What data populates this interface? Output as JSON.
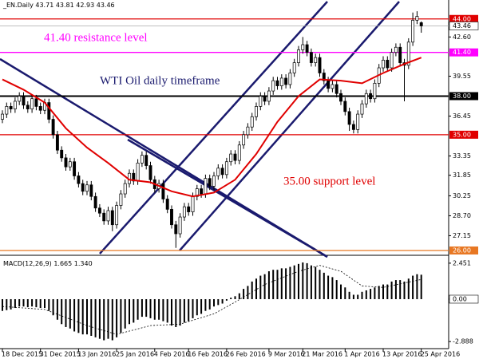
{
  "chart_data": {
    "type": "candlestick",
    "header_symbol": "_EN.Daily",
    "up_color": "#ffffff",
    "down_color": "#000000",
    "categories": [
      "18 Dec 2015",
      null,
      null,
      null,
      null,
      null,
      null,
      null,
      null,
      "31 Dec 2015",
      null,
      null,
      null,
      null,
      null,
      null,
      null,
      null,
      "13 Jan 2016",
      null,
      null,
      null,
      null,
      null,
      null,
      null,
      null,
      "25 Jan 2016",
      null,
      null,
      null,
      null,
      null,
      null,
      null,
      null,
      "4 Feb 2016",
      null,
      null,
      null,
      null,
      null,
      null,
      null,
      "16 Feb 2016",
      null,
      null,
      null,
      null,
      null,
      null,
      null,
      null,
      "26 Feb 2016",
      null,
      null,
      null,
      null,
      null,
      null,
      null,
      null,
      null,
      "9 Mar 2016",
      null,
      null,
      null,
      null,
      null,
      null,
      null,
      "21 Mar 2016",
      null,
      null,
      null,
      null,
      null,
      null,
      null,
      null,
      null,
      "1 Apr 2016",
      null,
      null,
      null,
      null,
      null,
      null,
      null,
      null,
      "13 Apr 2016",
      null,
      null,
      null,
      null,
      null,
      null,
      null,
      null,
      "25 Apr 2016"
    ],
    "open": [
      36.2,
      36.6,
      37.2,
      37.0,
      37.6,
      38.0,
      37.3,
      37.0,
      37.8,
      37.2,
      36.9,
      37.5,
      36.2,
      35.0,
      33.8,
      33.2,
      32.5,
      32.9,
      31.8,
      31.2,
      30.6,
      31.1,
      30.2,
      29.3,
      28.9,
      28.3,
      29.1,
      28.0,
      29.5,
      30.4,
      31.2,
      32.0,
      31.4,
      32.8,
      33.4,
      32.6,
      31.5,
      30.8,
      31.2,
      30.0,
      29.2,
      28.0,
      27.3,
      28.6,
      29.4,
      29.0,
      30.2,
      30.8,
      30.4,
      31.6,
      31.0,
      31.8,
      32.4,
      31.9,
      32.9,
      33.5,
      33.0,
      34.2,
      35.0,
      35.6,
      36.4,
      37.2,
      38.0,
      37.6,
      38.4,
      39.2,
      38.8,
      39.4,
      38.9,
      39.8,
      40.6,
      41.6,
      42.0,
      41.4,
      40.6,
      41.0,
      39.8,
      39.2,
      38.6,
      38.9,
      38.2,
      37.6,
      36.8,
      35.8,
      35.4,
      36.6,
      37.4,
      38.2,
      37.8,
      39.0,
      40.2,
      40.8,
      40.2,
      41.4,
      41.8,
      40.6,
      40.4,
      42.2,
      43.9,
      43.71
    ],
    "high": [
      36.9,
      37.5,
      37.5,
      37.9,
      38.3,
      38.3,
      37.6,
      38.1,
      38.1,
      37.5,
      37.8,
      37.8,
      36.5,
      35.3,
      34.1,
      33.5,
      33.2,
      33.2,
      32.1,
      31.5,
      31.4,
      31.4,
      30.5,
      29.6,
      29.2,
      29.4,
      29.4,
      29.8,
      30.7,
      31.5,
      32.3,
      32.3,
      33.1,
      33.7,
      33.7,
      32.9,
      31.8,
      31.5,
      31.5,
      30.3,
      29.5,
      28.3,
      28.9,
      29.7,
      29.7,
      30.5,
      31.1,
      31.1,
      31.9,
      31.9,
      32.1,
      32.7,
      32.7,
      33.2,
      33.8,
      33.8,
      34.5,
      35.3,
      35.9,
      36.7,
      37.5,
      38.3,
      38.3,
      38.7,
      39.5,
      39.5,
      39.7,
      39.7,
      40.1,
      40.9,
      41.9,
      42.6,
      42.3,
      41.7,
      41.3,
      41.3,
      40.1,
      39.5,
      39.2,
      39.2,
      38.5,
      37.9,
      37.1,
      36.1,
      36.9,
      37.7,
      38.5,
      38.5,
      39.3,
      40.5,
      41.1,
      41.1,
      41.7,
      42.1,
      42.1,
      40.9,
      42.5,
      44.5,
      44.6,
      43.81
    ],
    "low": [
      35.9,
      36.3,
      36.7,
      36.7,
      37.3,
      37.0,
      36.7,
      36.7,
      36.9,
      36.6,
      36.6,
      35.9,
      34.7,
      33.5,
      32.9,
      32.2,
      32.2,
      31.5,
      30.9,
      30.3,
      30.3,
      29.9,
      29.0,
      28.6,
      28.0,
      28.0,
      27.5,
      27.7,
      29.2,
      30.1,
      30.9,
      31.1,
      31.1,
      32.5,
      32.3,
      31.2,
      30.5,
      30.5,
      29.7,
      28.9,
      27.7,
      26.2,
      27.0,
      28.3,
      28.7,
      28.7,
      29.9,
      30.1,
      30.1,
      30.7,
      30.7,
      31.5,
      31.6,
      31.6,
      32.6,
      32.7,
      32.7,
      33.9,
      34.7,
      35.3,
      36.1,
      36.9,
      37.3,
      37.3,
      38.1,
      38.5,
      38.5,
      38.6,
      38.6,
      39.5,
      40.3,
      41.3,
      41.1,
      40.3,
      40.3,
      39.5,
      38.9,
      38.3,
      38.3,
      37.9,
      37.3,
      36.5,
      35.3,
      35.1,
      35.1,
      36.3,
      37.1,
      37.5,
      37.5,
      38.7,
      39.9,
      39.9,
      39.9,
      41.1,
      40.3,
      37.6,
      40.1,
      41.9,
      43.6,
      42.93
    ],
    "close": [
      36.6,
      37.2,
      37.0,
      37.6,
      38.0,
      37.3,
      37.0,
      37.8,
      37.2,
      36.9,
      37.5,
      36.2,
      35.0,
      33.8,
      33.2,
      32.5,
      32.9,
      31.8,
      31.2,
      30.6,
      31.1,
      30.2,
      29.3,
      28.9,
      28.3,
      29.1,
      28.0,
      29.5,
      30.4,
      31.2,
      32.0,
      31.4,
      32.8,
      33.4,
      32.6,
      31.5,
      30.8,
      31.2,
      30.0,
      29.2,
      28.0,
      27.3,
      28.6,
      29.4,
      29.0,
      30.2,
      30.8,
      30.4,
      31.6,
      31.0,
      31.8,
      32.4,
      31.9,
      32.9,
      33.5,
      33.0,
      34.2,
      35.0,
      35.6,
      36.4,
      37.2,
      38.0,
      37.6,
      38.4,
      39.2,
      38.8,
      39.4,
      38.9,
      39.8,
      40.6,
      41.6,
      42.0,
      41.4,
      40.6,
      41.0,
      39.8,
      39.2,
      38.6,
      38.9,
      38.2,
      37.6,
      36.8,
      35.8,
      35.4,
      36.6,
      37.4,
      38.2,
      37.8,
      39.0,
      40.2,
      40.8,
      40.2,
      41.4,
      41.8,
      40.6,
      40.4,
      42.2,
      43.9,
      44.2,
      43.46
    ],
    "ylim": [
      25.75,
      45.35
    ],
    "yticks": [
      {
        "value": 42.6,
        "label": "42.60"
      },
      {
        "value": 39.55,
        "label": "39.55"
      },
      {
        "value": 36.45,
        "label": "36.45"
      },
      {
        "value": 33.35,
        "label": "33.35"
      },
      {
        "value": 31.85,
        "label": "31.85"
      },
      {
        "value": 30.25,
        "label": "30.25"
      },
      {
        "value": 28.7,
        "label": "28.70"
      },
      {
        "value": 27.15,
        "label": "27.15"
      }
    ],
    "levels": [
      {
        "value": 44,
        "label": "44.00",
        "color": "#e00000"
      },
      {
        "value": 41.4,
        "label": "41.40",
        "color": "#ff00ff"
      },
      {
        "value": 38,
        "label": "38.00",
        "color": "#000000"
      },
      {
        "value": 35,
        "label": "35.00",
        "color": "#e00000"
      },
      {
        "value": 26,
        "label": "26.00",
        "color": "#e87722"
      }
    ],
    "annotations": [
      {
        "text": "41.40 resistance level",
        "color": "#ff00ff"
      },
      {
        "text": "WTI Oil daily timeframe",
        "color": "#1a1a6e"
      },
      {
        "text": "35.00 support level",
        "color": "#e00000"
      }
    ],
    "ma": {
      "color": "#e00000",
      "x": [
        0,
        5,
        10,
        15,
        20,
        25,
        30,
        35,
        40,
        45,
        50,
        55,
        60,
        65,
        70,
        75,
        80,
        85,
        90,
        95,
        99
      ],
      "values": [
        39.3,
        38.5,
        37.5,
        35.5,
        34.0,
        32.8,
        31.5,
        31.3,
        30.6,
        30.2,
        30.5,
        31.5,
        33.5,
        36.0,
        38.0,
        39.3,
        39.2,
        39.0,
        39.8,
        40.5,
        41.0
      ]
    },
    "macd": {
      "title": "MACD(12,26,9)",
      "ylim": [
        -3.37,
        2.88
      ],
      "yticks": [
        {
          "value": 2.451,
          "label": "2.451"
        },
        {
          "value": 0,
          "label": "0.00"
        },
        {
          "value": -2.888,
          "label": "-2.888"
        }
      ],
      "histogram": {
        "color": "#000000",
        "values": [
          -0.8,
          -0.75,
          -0.7,
          -0.6,
          -0.5,
          -0.5,
          -0.55,
          -0.5,
          -0.55,
          -0.6,
          -0.6,
          -0.8,
          -1.1,
          -1.4,
          -1.7,
          -1.9,
          -2.0,
          -2.2,
          -2.3,
          -2.4,
          -2.4,
          -2.5,
          -2.6,
          -2.7,
          -2.8,
          -2.7,
          -2.8,
          -2.6,
          -2.3,
          -2.0,
          -1.7,
          -1.6,
          -1.4,
          -1.2,
          -1.2,
          -1.3,
          -1.4,
          -1.4,
          -1.5,
          -1.6,
          -1.8,
          -1.9,
          -1.8,
          -1.6,
          -1.5,
          -1.3,
          -1.1,
          -1.0,
          -0.8,
          -0.7,
          -0.5,
          -0.4,
          -0.3,
          -0.1,
          0.1,
          0.2,
          0.4,
          0.7,
          0.9,
          1.2,
          1.4,
          1.6,
          1.7,
          1.9,
          2.0,
          2.0,
          2.1,
          2.1,
          2.2,
          2.3,
          2.4,
          2.5,
          2.45,
          2.3,
          2.2,
          2.0,
          1.8,
          1.6,
          1.5,
          1.3,
          1.0,
          0.8,
          0.5,
          0.3,
          0.3,
          0.5,
          0.6,
          0.7,
          0.8,
          0.9,
          1.0,
          1.0,
          1.2,
          1.3,
          1.3,
          1.2,
          1.4,
          1.6,
          1.7,
          1.665
        ]
      },
      "signal": {
        "color": "#000000",
        "x": [
          0,
          10,
          20,
          27,
          35,
          42,
          50,
          55,
          62,
          70,
          75,
          80,
          85,
          90,
          95,
          99
        ],
        "values": [
          -0.5,
          -0.7,
          -1.8,
          -2.4,
          -1.8,
          -1.7,
          -1.0,
          -0.2,
          1.0,
          1.9,
          2.3,
          1.9,
          0.9,
          0.8,
          1.1,
          1.34
        ],
        "value_labels": [
          null,
          null,
          null,
          null,
          null,
          null,
          null,
          null,
          null,
          null,
          null,
          null,
          null,
          null,
          null,
          "1.340"
        ]
      }
    }
  }
}
